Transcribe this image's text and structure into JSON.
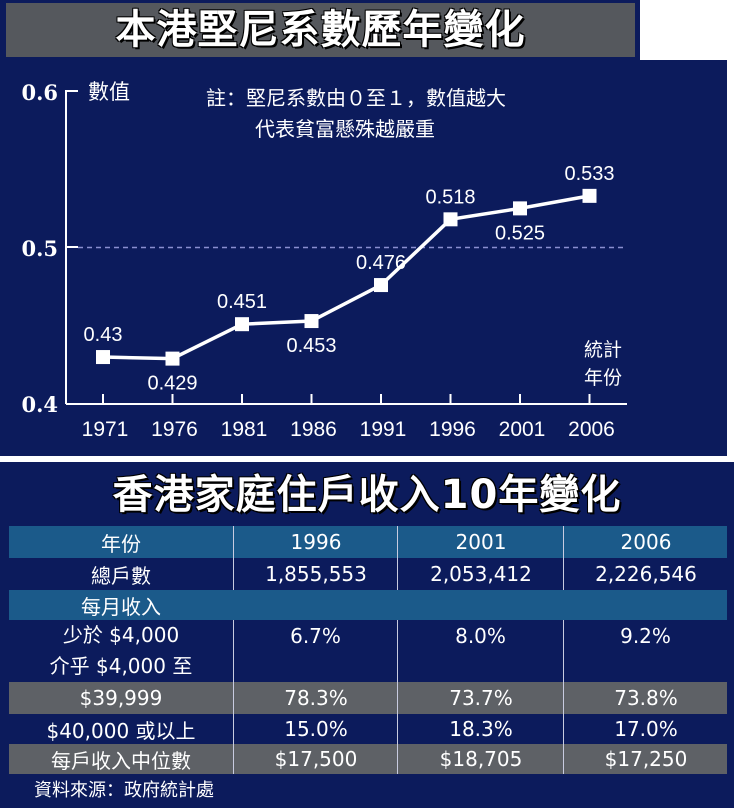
{
  "top_title": "本港堅尼系數歷年變化",
  "chart_data": {
    "type": "line",
    "title": "本港堅尼系數歷年變化",
    "ylabel": "數值",
    "xlabel": "統計\n年份",
    "ylabel_text": "數值",
    "xlabel_line1": "統計",
    "xlabel_line2": "年份",
    "note_line1": "註：堅尼系數由０至１，數值越大",
    "note_line2": "代表貧富懸殊越嚴重",
    "categories": [
      "1971",
      "1976",
      "1981",
      "1986",
      "1991",
      "1996",
      "2001",
      "2006"
    ],
    "values": [
      0.43,
      0.429,
      0.451,
      0.453,
      0.476,
      0.518,
      0.525,
      0.533
    ],
    "value_labels": [
      "0.43",
      "0.429",
      "0.451",
      "0.453",
      "0.476",
      "0.518",
      "0.525",
      "0.533"
    ],
    "yticks": [
      "0.6",
      "0.5",
      "0.4"
    ],
    "ylim": [
      0.4,
      0.6
    ],
    "reference_line": 0.5,
    "grid": false
  },
  "table": {
    "title": "香港家庭住戶收入10年變化",
    "header": [
      "年份",
      "1996",
      "2001",
      "2006"
    ],
    "rows": [
      [
        "總戶數",
        "1,855,553",
        "2,053,412",
        "2,226,546"
      ],
      [
        "每月收入",
        "",
        "",
        ""
      ],
      [
        "少於 $4,000",
        "6.7%",
        "8.0%",
        "9.2%"
      ],
      [
        "介乎 $4,000 至",
        "",
        "",
        ""
      ],
      [
        "$39,999",
        "78.3%",
        "73.7%",
        "73.8%"
      ],
      [
        "$40,000 或以上",
        "15.0%",
        "18.3%",
        "17.0%"
      ],
      [
        "每戶收入中位數",
        "$17,500",
        "$18,705",
        "$17,250"
      ]
    ]
  },
  "source": "資料來源：政府統計處",
  "colors": {
    "panel_bg": "#0c1b5c",
    "title_bar": "#55585d",
    "row_teal": "#1b5a8a",
    "row_gray": "#5e6166",
    "reference_line": "#8a8fd0",
    "line": "#ffffff"
  }
}
